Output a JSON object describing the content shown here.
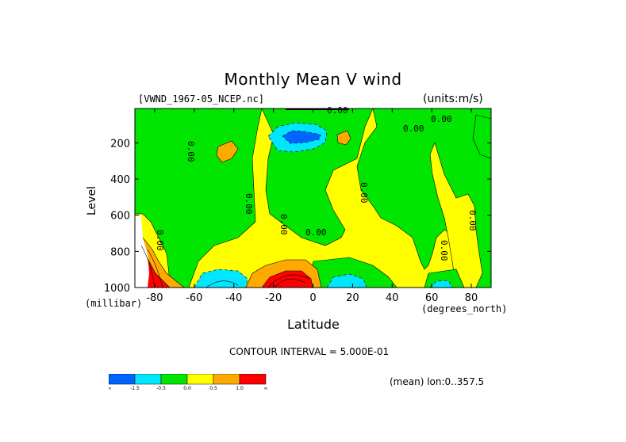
{
  "chart_data": {
    "type": "heatmap",
    "title": "Monthly Mean V wind",
    "file_label": "[VWND_1967-05_NCEP.nc]",
    "units_label": "(units:m/s)",
    "xlabel": "Latitude",
    "xunits": "(degrees_north)",
    "ylabel": "Level",
    "yunits": "(millibar)",
    "x_ticks": [
      "-80",
      "-60",
      "-40",
      "-20",
      "0",
      "20",
      "40",
      "60",
      "80"
    ],
    "x_tick_values": [
      -80,
      -60,
      -40,
      -20,
      0,
      20,
      40,
      60,
      80
    ],
    "y_ticks": [
      "200",
      "400",
      "600",
      "800",
      "1000"
    ],
    "y_tick_values": [
      200,
      400,
      600,
      800,
      1000
    ],
    "xlim": [
      -90,
      90
    ],
    "ylim": [
      1000,
      10
    ],
    "contour_interval_text": "CONTOUR INTERVAL = 5.000E-01",
    "mean_text": "(mean) lon:0..357.5",
    "contour_labels": [
      "0.00",
      "0.00",
      "0.00",
      "0.00",
      "0.00",
      "0.00",
      "0.00",
      "0.00",
      "0.00",
      "0.00",
      "0.00"
    ],
    "colorbar": {
      "colors": [
        "#0064ff",
        "#00e6ff",
        "#00e600",
        "#ffff00",
        "#ffaa00",
        "#ff0000"
      ],
      "labels": [
        "-∞",
        "-1.5",
        "-0.5",
        "0.0",
        "0.5",
        "1.0",
        "∞"
      ]
    },
    "regions": [
      {
        "name": "background",
        "value": 0.25,
        "color": "#ffff00"
      },
      {
        "name": "tropopause-southern-mid",
        "value": -0.25,
        "color": "#00e600"
      },
      {
        "name": "upper-jet-negative",
        "value": -1.25,
        "color": "#00e6ff"
      },
      {
        "name": "upper-jet-core",
        "value": -1.75,
        "color": "#0064ff"
      },
      {
        "name": "southern-high-lat-surface",
        "value": 1.75,
        "color": "#ff0000"
      },
      {
        "name": "subtropical-surface-positive",
        "value": 1.75,
        "color": "#ff0000"
      },
      {
        "name": "surface-negative-cells",
        "value": -1.25,
        "color": "#00e6ff"
      }
    ]
  }
}
